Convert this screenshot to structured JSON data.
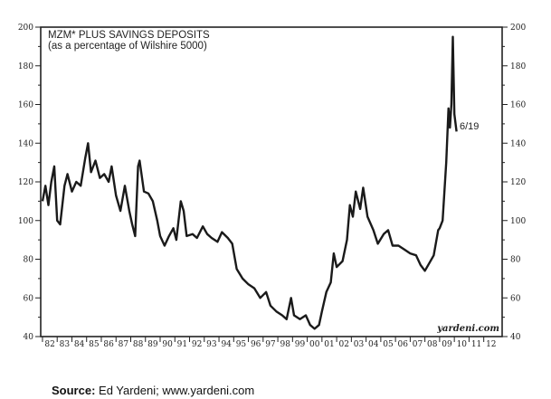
{
  "chart_data": {
    "type": "line",
    "title": "MZM* PLUS SAVINGS DEPOSITS",
    "subtitle": "(as a percentage of Wilshire 5000)",
    "xlabel": "",
    "ylabel": "",
    "ylim": [
      40,
      200
    ],
    "xlim": [
      1982,
      2013
    ],
    "y_ticks": [
      40,
      60,
      80,
      100,
      120,
      140,
      160,
      180,
      200
    ],
    "x_tick_labels": [
      "82",
      "83",
      "84",
      "85",
      "86",
      "87",
      "88",
      "89",
      "90",
      "91",
      "92",
      "93",
      "94",
      "95",
      "96",
      "97",
      "98",
      "99",
      "00",
      "01",
      "02",
      "03",
      "04",
      "05",
      "06",
      "07",
      "08",
      "09",
      "10",
      "11",
      "12"
    ],
    "y_axes": "left and right",
    "grid": false,
    "annotation": "6/19",
    "watermark": "yardeni.com",
    "series": [
      {
        "color": "#1a1a1a",
        "x": [
          1982.0,
          1982.2,
          1982.4,
          1982.6,
          1982.8,
          1983.0,
          1983.2,
          1983.5,
          1983.7,
          1984.0,
          1984.3,
          1984.6,
          1984.9,
          1985.1,
          1985.3,
          1985.6,
          1985.9,
          1986.2,
          1986.5,
          1986.7,
          1987.0,
          1987.3,
          1987.6,
          1987.9,
          1988.1,
          1988.3,
          1988.5,
          1988.6,
          1988.9,
          1989.2,
          1989.5,
          1989.8,
          1990.0,
          1990.3,
          1990.6,
          1990.9,
          1991.1,
          1991.4,
          1991.6,
          1991.8,
          1992.2,
          1992.5,
          1992.9,
          1993.2,
          1993.5,
          1993.9,
          1994.2,
          1994.6,
          1994.9,
          1995.2,
          1995.6,
          1996.0,
          1996.4,
          1996.8,
          1997.2,
          1997.5,
          1997.9,
          1998.3,
          1998.6,
          1998.9,
          1999.1,
          1999.5,
          1999.9,
          2000.2,
          2000.5,
          2000.8,
          2001.0,
          2001.3,
          2001.6,
          2001.8,
          2002.0,
          2002.4,
          2002.7,
          2002.9,
          2003.1,
          2003.3,
          2003.6,
          2003.8,
          2004.1,
          2004.5,
          2004.8,
          2005.2,
          2005.5,
          2005.8,
          2006.2,
          2006.6,
          2007.0,
          2007.4,
          2007.7,
          2008.0,
          2008.3,
          2008.6,
          2008.9,
          2009.0,
          2009.2,
          2009.45,
          2009.6,
          2009.7,
          2009.8,
          2009.9,
          2010.0,
          2010.15
        ],
        "y": [
          110,
          118,
          108,
          120,
          128,
          100,
          98,
          118,
          124,
          115,
          120,
          118,
          132,
          140,
          125,
          131,
          122,
          124,
          120,
          128,
          113,
          105,
          118,
          105,
          98,
          92,
          128,
          131,
          115,
          114,
          110,
          100,
          92,
          87,
          92,
          96,
          90,
          110,
          105,
          92,
          93,
          91,
          97,
          93,
          91,
          89,
          94,
          91,
          88,
          75,
          70,
          67,
          65,
          60,
          63,
          56,
          53,
          51,
          49,
          60,
          51,
          49,
          51,
          46,
          44,
          46,
          53,
          63,
          68,
          83,
          76,
          79,
          90,
          108,
          102,
          115,
          106,
          117,
          102,
          95,
          88,
          93,
          95,
          87,
          87,
          85,
          83,
          82,
          77,
          74,
          78,
          82,
          95,
          96,
          100,
          130,
          158,
          148,
          160,
          195,
          155,
          146
        ]
      }
    ]
  },
  "source": {
    "label": "Source:",
    "text": " Ed Yardeni; www.yardeni.com"
  }
}
